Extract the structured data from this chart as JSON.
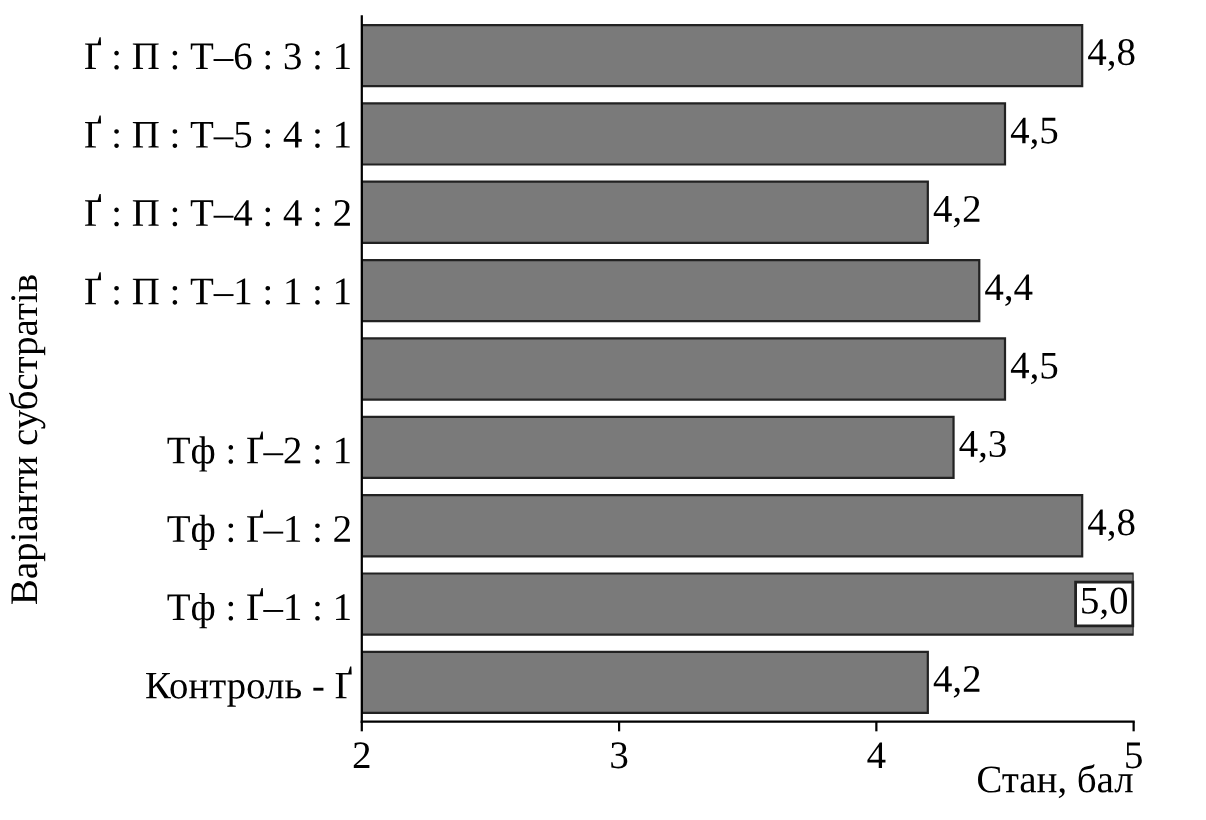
{
  "chart_data": {
    "type": "bar",
    "orientation": "horizontal",
    "categories": [
      "Ґ : П : Т–6 : 3 : 1",
      "Ґ : П : Т–5 : 4 : 1",
      "Ґ : П : Т–4 : 4 : 2",
      "Ґ : П : Т–1 : 1 : 1",
      null,
      "Тф : Ґ–2 : 1",
      "Тф : Ґ–1 : 2",
      "Тф : Ґ–1 : 1",
      "Контроль - Ґ"
    ],
    "values": [
      4.8,
      4.5,
      4.2,
      4.4,
      4.5,
      4.3,
      4.8,
      5.0,
      4.2
    ],
    "value_labels": [
      "4,8",
      "4,5",
      "4,2",
      "4,4",
      "4,5",
      "4,3",
      "4,8",
      "5,0",
      "4,2"
    ],
    "color": "#7a7a7a",
    "xlim": [
      2,
      5
    ],
    "xticks": [
      2,
      3,
      4,
      5
    ],
    "xlabel": "Стан, бал",
    "ylabel": "Варіанти субстратів",
    "grid": false
  }
}
